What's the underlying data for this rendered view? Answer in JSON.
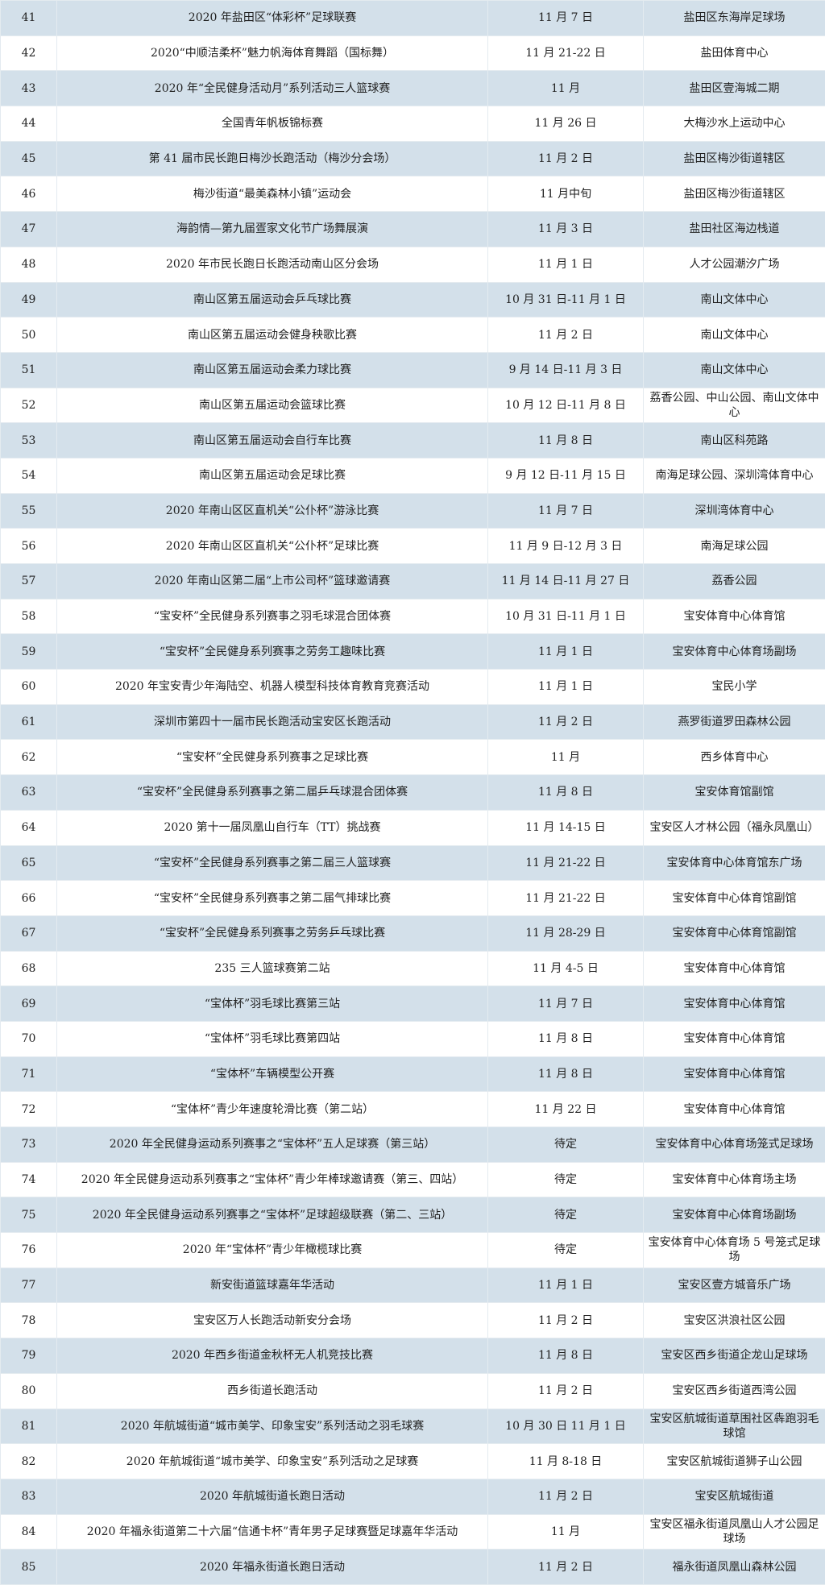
{
  "table": {
    "rows": [
      [
        "41",
        "2020 年盐田区“体彩杯”足球联赛",
        "11 月 7 日",
        "盐田区东海岸足球场"
      ],
      [
        "42",
        "2020“中顺洁柔杯”魅力帆海体育舞蹈（国标舞）",
        "11 月 21-22 日",
        "盐田体育中心"
      ],
      [
        "43",
        "2020 年“全民健身活动月”系列活动三人篮球赛",
        "11 月",
        "盐田区壹海城二期"
      ],
      [
        "44",
        "全国青年帆板锦标赛",
        "11 月 26 日",
        "大梅沙水上运动中心"
      ],
      [
        "45",
        "第 41 届市民长跑日梅沙长跑活动（梅沙分会场）",
        "11 月 2 日",
        "盐田区梅沙街道辖区"
      ],
      [
        "46",
        "梅沙街道“最美森林小镇”运动会",
        "11 月中旬",
        "盐田区梅沙街道辖区"
      ],
      [
        "47",
        "海韵情—第九届疍家文化节广场舞展演",
        "11 月 3 日",
        "盐田社区海边栈道"
      ],
      [
        "48",
        "2020 年市民长跑日长跑活动南山区分会场",
        "11 月 1 日",
        "人才公园潮汐广场"
      ],
      [
        "49",
        "南山区第五届运动会乒乓球比赛",
        "10 月 31 日-11 月 1 日",
        "南山文体中心"
      ],
      [
        "50",
        "南山区第五届运动会健身秧歌比赛",
        "11 月 2 日",
        "南山文体中心"
      ],
      [
        "51",
        "南山区第五届运动会柔力球比赛",
        "9 月 14 日-11 月 3 日",
        "南山文体中心"
      ],
      [
        "52",
        "南山区第五届运动会篮球比赛",
        "10 月 12 日-11 月 8 日",
        "荔香公园、中山公园、南山文体中心"
      ],
      [
        "53",
        "南山区第五届运动会自行车比赛",
        "11 月 8 日",
        "南山区科苑路"
      ],
      [
        "54",
        "南山区第五届运动会足球比赛",
        "9 月 12 日-11 月 15 日",
        "南海足球公园、深圳湾体育中心"
      ],
      [
        "55",
        "2020 年南山区区直机关“公仆杯”游泳比赛",
        "11 月 7 日",
        "深圳湾体育中心"
      ],
      [
        "56",
        "2020 年南山区区直机关“公仆杯”足球比赛",
        "11 月 9 日-12 月 3 日",
        "南海足球公园"
      ],
      [
        "57",
        "2020 年南山区第二届“上市公司杯”篮球邀请赛",
        "11 月 14 日-11 月 27 日",
        "荔香公园"
      ],
      [
        "58",
        "“宝安杯”全民健身系列赛事之羽毛球混合团体赛",
        "10 月 31 日-11 月 1 日",
        "宝安体育中心体育馆"
      ],
      [
        "59",
        "“宝安杯”全民健身系列赛事之劳务工趣味比赛",
        "11 月 1 日",
        "宝安体育中心体育场副场"
      ],
      [
        "60",
        "2020 年宝安青少年海陆空、机器人模型科技体育教育竞赛活动",
        "11 月 1 日",
        "宝民小学"
      ],
      [
        "61",
        "深圳市第四十一届市民长跑活动宝安区长跑活动",
        "11 月 2 日",
        "燕罗街道罗田森林公园"
      ],
      [
        "62",
        "“宝安杯”全民健身系列赛事之足球比赛",
        "11 月",
        "西乡体育中心"
      ],
      [
        "63",
        "“宝安杯”全民健身系列赛事之第二届乒乓球混合团体赛",
        "11 月 8 日",
        "宝安体育馆副馆"
      ],
      [
        "64",
        "2020 第十一届凤凰山自行车（TT）挑战赛",
        "11 月 14-15 日",
        "宝安区人才林公园（福永凤凰山）"
      ],
      [
        "65",
        "“宝安杯”全民健身系列赛事之第二届三人篮球赛",
        "11 月 21-22 日",
        "宝安体育中心体育馆东广场"
      ],
      [
        "66",
        "“宝安杯”全民健身系列赛事之第二届气排球比赛",
        "11 月 21-22 日",
        "宝安体育中心体育馆副馆"
      ],
      [
        "67",
        "“宝安杯”全民健身系列赛事之劳务乒乓球比赛",
        "11 月 28-29 日",
        "宝安体育中心体育馆副馆"
      ],
      [
        "68",
        "235 三人篮球赛第二站",
        "11 月 4-5 日",
        "宝安体育中心体育馆"
      ],
      [
        "69",
        "“宝体杯”羽毛球比赛第三站",
        "11 月 7 日",
        "宝安体育中心体育馆"
      ],
      [
        "70",
        "“宝体杯”羽毛球比赛第四站",
        "11 月 8 日",
        "宝安体育中心体育馆"
      ],
      [
        "71",
        "“宝体杯”车辆模型公开赛",
        "11 月 8 日",
        "宝安体育中心体育馆"
      ],
      [
        "72",
        "“宝体杯”青少年速度轮滑比赛（第二站）",
        "11 月 22 日",
        "宝安体育中心体育馆"
      ],
      [
        "73",
        "2020 年全民健身运动系列赛事之“宝体杯”五人足球赛（第三站）",
        "待定",
        "宝安体育中心体育场笼式足球场"
      ],
      [
        "74",
        "2020 年全民健身运动系列赛事之“宝体杯”青少年棒球邀请赛（第三、四站）",
        "待定",
        "宝安体育中心体育场主场"
      ],
      [
        "75",
        "2020 年全民健身运动系列赛事之“宝体杯”足球超级联赛（第二、三站）",
        "待定",
        "宝安体育中心体育场副场"
      ],
      [
        "76",
        "2020 年“宝体杯”青少年橄榄球比赛",
        "待定",
        "宝安体育中心体育场 5 号笼式足球场"
      ],
      [
        "77",
        "新安街道篮球嘉年华活动",
        "11 月 1 日",
        "宝安区壹方城音乐广场"
      ],
      [
        "78",
        "宝安区万人长跑活动新安分会场",
        "11 月 2 日",
        "宝安区洪浪社区公园"
      ],
      [
        "79",
        "2020 年西乡街道金秋杯无人机竞技比赛",
        "11 月 8 日",
        "宝安区西乡街道企龙山足球场"
      ],
      [
        "80",
        "西乡街道长跑活动",
        "11 月 2 日",
        "宝安区西乡街道西湾公园"
      ],
      [
        "81",
        "2020 年航城街道“城市美学、印象宝安”系列活动之羽毛球赛",
        "10 月 30 日 11 月 1 日",
        "宝安区航城街道草围社区犇跑羽毛球馆"
      ],
      [
        "82",
        "2020 年航城街道“城市美学、印象宝安”系列活动之足球赛",
        "11 月 8-18 日",
        "宝安区航城街道狮子山公园"
      ],
      [
        "83",
        "2020 年航城街道长跑日活动",
        "11 月 2 日",
        "宝安区航城街道"
      ],
      [
        "84",
        "2020 年福永街道第二十六届“信通卡杯”青年男子足球赛暨足球嘉年华活动",
        "11 月",
        "宝安区福永街道凤凰山人才公园足球场"
      ],
      [
        "85",
        "2020 年福永街道长跑日活动",
        "11 月 2 日",
        "福永街道凤凰山森林公园"
      ]
    ]
  }
}
